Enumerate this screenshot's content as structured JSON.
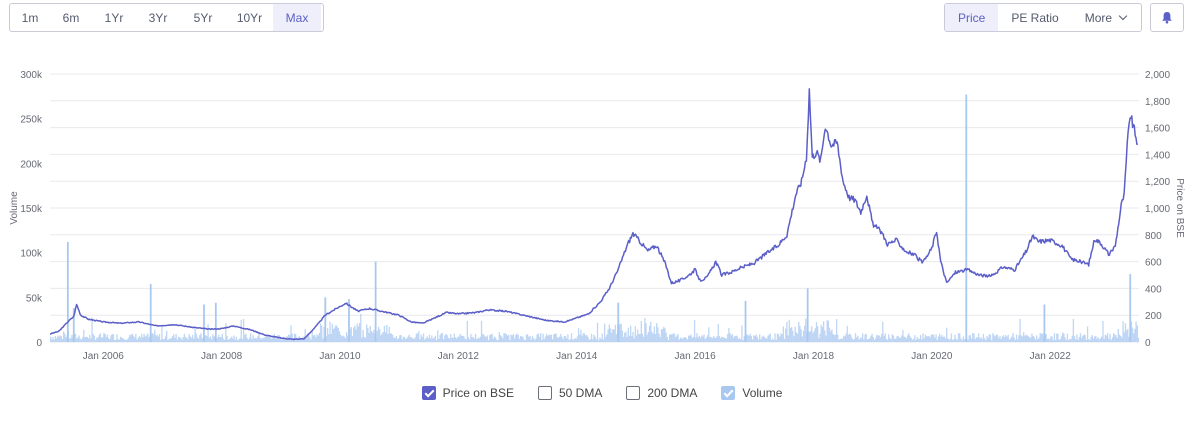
{
  "range_buttons": [
    {
      "label": "1m",
      "active": false
    },
    {
      "label": "6m",
      "active": false
    },
    {
      "label": "1Yr",
      "active": false
    },
    {
      "label": "3Yr",
      "active": false
    },
    {
      "label": "5Yr",
      "active": false
    },
    {
      "label": "10Yr",
      "active": false
    },
    {
      "label": "Max",
      "active": true
    }
  ],
  "metric_buttons": {
    "price": "Price",
    "pe_ratio": "PE Ratio",
    "more": "More"
  },
  "legend": {
    "price": "Price on BSE",
    "dma50": "50 DMA",
    "dma200": "200 DMA",
    "volume": "Volume"
  },
  "colors": {
    "price_line": "#5b5fc7",
    "volume_bar": "#a9c8f0",
    "grid": "#e9e9ee",
    "text": "#666a73"
  },
  "chart_data": {
    "type": "line",
    "title": "",
    "ylabel_left": "Volume",
    "ylabel_right": "Price on BSE",
    "xlim": [
      2005.1,
      2023.5
    ],
    "ylim_price": [
      0,
      2000
    ],
    "ylim_volume": [
      0,
      300000
    ],
    "x_ticks": [
      {
        "x": 2006.0,
        "label": "Jan 2006"
      },
      {
        "x": 2008.0,
        "label": "Jan 2008"
      },
      {
        "x": 2010.0,
        "label": "Jan 2010"
      },
      {
        "x": 2012.0,
        "label": "Jan 2012"
      },
      {
        "x": 2014.0,
        "label": "Jan 2014"
      },
      {
        "x": 2016.0,
        "label": "Jan 2016"
      },
      {
        "x": 2018.0,
        "label": "Jan 2018"
      },
      {
        "x": 2020.0,
        "label": "Jan 2020"
      },
      {
        "x": 2022.0,
        "label": "Jan 2022"
      }
    ],
    "y_ticks_volume": [
      {
        "v": 0,
        "label": "0"
      },
      {
        "v": 50000,
        "label": "50k"
      },
      {
        "v": 100000,
        "label": "100k"
      },
      {
        "v": 150000,
        "label": "150k"
      },
      {
        "v": 200000,
        "label": "200k"
      },
      {
        "v": 250000,
        "label": "250k"
      },
      {
        "v": 300000,
        "label": "300k"
      }
    ],
    "y_ticks_price": [
      {
        "v": 0,
        "label": "0"
      },
      {
        "v": 200,
        "label": "200"
      },
      {
        "v": 400,
        "label": "400"
      },
      {
        "v": 600,
        "label": "600"
      },
      {
        "v": 800,
        "label": "800"
      },
      {
        "v": 1000,
        "label": "1,000"
      },
      {
        "v": 1200,
        "label": "1,200"
      },
      {
        "v": 1400,
        "label": "1,400"
      },
      {
        "v": 1600,
        "label": "1,600"
      },
      {
        "v": 1800,
        "label": "1,800"
      },
      {
        "v": 2000,
        "label": "2,000"
      }
    ],
    "series": [
      {
        "name": "Price on BSE",
        "points": [
          [
            2005.1,
            60
          ],
          [
            2005.25,
            80
          ],
          [
            2005.4,
            150
          ],
          [
            2005.5,
            190
          ],
          [
            2005.55,
            280
          ],
          [
            2005.62,
            200
          ],
          [
            2005.75,
            170
          ],
          [
            2006.0,
            150
          ],
          [
            2006.3,
            140
          ],
          [
            2006.6,
            150
          ],
          [
            2006.9,
            120
          ],
          [
            2007.2,
            130
          ],
          [
            2007.5,
            110
          ],
          [
            2007.8,
            95
          ],
          [
            2008.0,
            100
          ],
          [
            2008.2,
            120
          ],
          [
            2008.5,
            90
          ],
          [
            2008.75,
            50
          ],
          [
            2009.0,
            30
          ],
          [
            2009.2,
            20
          ],
          [
            2009.4,
            25
          ],
          [
            2009.6,
            120
          ],
          [
            2009.75,
            200
          ],
          [
            2009.9,
            240
          ],
          [
            2010.1,
            290
          ],
          [
            2010.3,
            230
          ],
          [
            2010.5,
            250
          ],
          [
            2010.7,
            230
          ],
          [
            2011.0,
            200
          ],
          [
            2011.2,
            150
          ],
          [
            2011.4,
            140
          ],
          [
            2011.6,
            180
          ],
          [
            2011.8,
            220
          ],
          [
            2012.0,
            210
          ],
          [
            2012.3,
            220
          ],
          [
            2012.5,
            240
          ],
          [
            2012.8,
            230
          ],
          [
            2013.0,
            210
          ],
          [
            2013.3,
            180
          ],
          [
            2013.5,
            160
          ],
          [
            2013.8,
            150
          ],
          [
            2014.0,
            180
          ],
          [
            2014.2,
            210
          ],
          [
            2014.4,
            300
          ],
          [
            2014.55,
            400
          ],
          [
            2014.7,
            540
          ],
          [
            2014.85,
            720
          ],
          [
            2014.95,
            810
          ],
          [
            2015.05,
            760
          ],
          [
            2015.2,
            680
          ],
          [
            2015.35,
            720
          ],
          [
            2015.5,
            580
          ],
          [
            2015.6,
            440
          ],
          [
            2015.75,
            460
          ],
          [
            2015.9,
            500
          ],
          [
            2016.0,
            540
          ],
          [
            2016.08,
            460
          ],
          [
            2016.2,
            480
          ],
          [
            2016.35,
            600
          ],
          [
            2016.45,
            500
          ],
          [
            2016.6,
            520
          ],
          [
            2016.75,
            550
          ],
          [
            2017.0,
            590
          ],
          [
            2017.2,
            660
          ],
          [
            2017.4,
            720
          ],
          [
            2017.55,
            800
          ],
          [
            2017.7,
            1100
          ],
          [
            2017.8,
            1200
          ],
          [
            2017.88,
            1380
          ],
          [
            2017.93,
            1880
          ],
          [
            2017.98,
            1380
          ],
          [
            2018.05,
            1420
          ],
          [
            2018.12,
            1350
          ],
          [
            2018.2,
            1620
          ],
          [
            2018.3,
            1470
          ],
          [
            2018.4,
            1490
          ],
          [
            2018.5,
            1200
          ],
          [
            2018.6,
            1080
          ],
          [
            2018.7,
            1060
          ],
          [
            2018.8,
            970
          ],
          [
            2018.9,
            1100
          ],
          [
            2019.0,
            880
          ],
          [
            2019.15,
            820
          ],
          [
            2019.25,
            730
          ],
          [
            2019.4,
            760
          ],
          [
            2019.55,
            680
          ],
          [
            2019.7,
            650
          ],
          [
            2019.85,
            590
          ],
          [
            2020.0,
            700
          ],
          [
            2020.08,
            830
          ],
          [
            2020.15,
            600
          ],
          [
            2020.25,
            440
          ],
          [
            2020.4,
            520
          ],
          [
            2020.6,
            540
          ],
          [
            2020.8,
            500
          ],
          [
            2021.0,
            490
          ],
          [
            2021.2,
            560
          ],
          [
            2021.4,
            540
          ],
          [
            2021.6,
            680
          ],
          [
            2021.7,
            790
          ],
          [
            2021.8,
            750
          ],
          [
            2022.0,
            760
          ],
          [
            2022.2,
            720
          ],
          [
            2022.35,
            620
          ],
          [
            2022.5,
            600
          ],
          [
            2022.65,
            580
          ],
          [
            2022.75,
            770
          ],
          [
            2022.85,
            740
          ],
          [
            2023.0,
            650
          ],
          [
            2023.1,
            720
          ],
          [
            2023.2,
            1020
          ],
          [
            2023.25,
            1100
          ],
          [
            2023.3,
            1460
          ],
          [
            2023.35,
            1700
          ],
          [
            2023.42,
            1580
          ],
          [
            2023.48,
            1480
          ]
        ]
      },
      {
        "name": "Volume",
        "spikes": [
          [
            2005.4,
            112000
          ],
          [
            2005.5,
            38000
          ],
          [
            2006.8,
            65000
          ],
          [
            2007.7,
            42000
          ],
          [
            2007.9,
            44000
          ],
          [
            2009.75,
            50000
          ],
          [
            2010.15,
            48000
          ],
          [
            2010.6,
            90000
          ],
          [
            2014.7,
            44000
          ],
          [
            2016.85,
            46000
          ],
          [
            2017.9,
            60000
          ],
          [
            2020.58,
            277000
          ],
          [
            2021.9,
            42000
          ],
          [
            2023.35,
            76000
          ]
        ]
      }
    ],
    "legend_position": "bottom"
  }
}
